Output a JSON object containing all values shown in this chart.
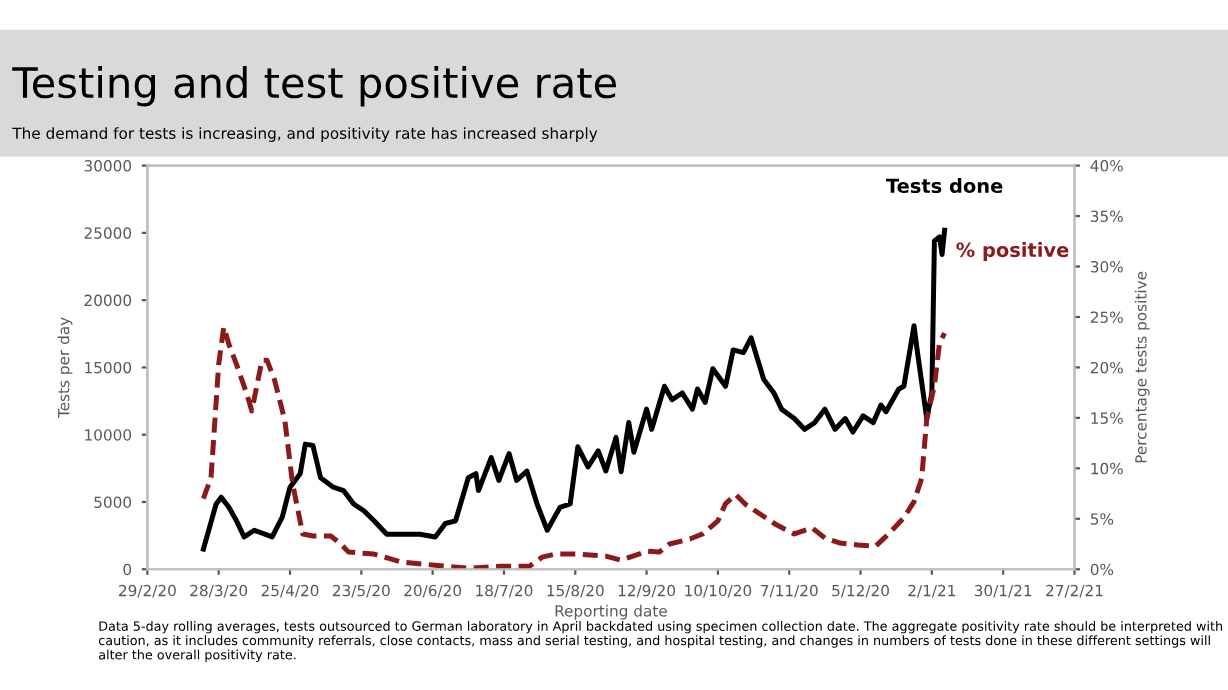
{
  "chart_data": {
    "type": "line",
    "title": "Testing and test positive rate",
    "subtitle": "The demand for tests is increasing, and positivity rate has increased sharply",
    "xlabel": "Reporting date",
    "ylabel": "Tests per day",
    "y2label": "Percentage tests positive",
    "xlim": [
      "2020-02-29",
      "2021-02-27"
    ],
    "xticks": [
      {
        "value": "2020-02-29",
        "label": "29/2/20"
      },
      {
        "value": "2020-03-28",
        "label": "28/3/20"
      },
      {
        "value": "2020-04-25",
        "label": "25/4/20"
      },
      {
        "value": "2020-05-23",
        "label": "23/5/20"
      },
      {
        "value": "2020-06-20",
        "label": "20/6/20"
      },
      {
        "value": "2020-07-18",
        "label": "18/7/20"
      },
      {
        "value": "2020-08-15",
        "label": "15/8/20"
      },
      {
        "value": "2020-09-12",
        "label": "12/9/20"
      },
      {
        "value": "2020-10-10",
        "label": "10/10/20"
      },
      {
        "value": "2020-11-07",
        "label": "7/11/20"
      },
      {
        "value": "2020-12-05",
        "label": "5/12/20"
      },
      {
        "value": "2021-01-02",
        "label": "2/1/21"
      },
      {
        "value": "2021-01-30",
        "label": "30/1/21"
      },
      {
        "value": "2021-02-27",
        "label": "27/2/21"
      }
    ],
    "ylim": [
      0,
      30000
    ],
    "yticks": [
      0,
      5000,
      10000,
      15000,
      20000,
      25000,
      30000
    ],
    "y2lim": [
      0,
      40
    ],
    "y2ticks": [
      {
        "value": 0,
        "label": "0%"
      },
      {
        "value": 5,
        "label": "5%"
      },
      {
        "value": 10,
        "label": "10%"
      },
      {
        "value": 15,
        "label": "15%"
      },
      {
        "value": 20,
        "label": "20%"
      },
      {
        "value": 25,
        "label": "25%"
      },
      {
        "value": 30,
        "label": "30%"
      },
      {
        "value": 35,
        "label": "35%"
      },
      {
        "value": 40,
        "label": "40%"
      }
    ],
    "grid": false,
    "legend": false,
    "series": [
      {
        "name": "Tests done",
        "color": "#000000",
        "line_style": "solid",
        "x": [
          "2020-03-22",
          "2020-03-27",
          "2020-03-29",
          "2020-04-01",
          "2020-04-04",
          "2020-04-07",
          "2020-04-11",
          "2020-04-18",
          "2020-04-22",
          "2020-04-25",
          "2020-04-29",
          "2020-05-01",
          "2020-05-04",
          "2020-05-07",
          "2020-05-12",
          "2020-05-16",
          "2020-05-20",
          "2020-05-24",
          "2020-05-28",
          "2020-06-02",
          "2020-06-08",
          "2020-06-15",
          "2020-06-21",
          "2020-06-25",
          "2020-06-29",
          "2020-07-04",
          "2020-07-07",
          "2020-07-08",
          "2020-07-13",
          "2020-07-16",
          "2020-07-20",
          "2020-07-23",
          "2020-07-27",
          "2020-07-31",
          "2020-08-04",
          "2020-08-09",
          "2020-08-13",
          "2020-08-16",
          "2020-08-20",
          "2020-08-24",
          "2020-08-27",
          "2020-08-31",
          "2020-09-02",
          "2020-09-05",
          "2020-09-07",
          "2020-09-12",
          "2020-09-14",
          "2020-09-19",
          "2020-09-22",
          "2020-09-26",
          "2020-09-30",
          "2020-10-02",
          "2020-10-05",
          "2020-10-08",
          "2020-10-13",
          "2020-10-16",
          "2020-10-20",
          "2020-10-23",
          "2020-10-28",
          "2020-11-01",
          "2020-11-04",
          "2020-11-09",
          "2020-11-13",
          "2020-11-17",
          "2020-11-21",
          "2020-11-25",
          "2020-11-29",
          "2020-12-02",
          "2020-12-06",
          "2020-12-10",
          "2020-12-13",
          "2020-12-15",
          "2020-12-20",
          "2020-12-22",
          "2020-12-26",
          "2020-12-27",
          "2020-12-31",
          "2021-01-02",
          "2021-01-03",
          "2021-01-05",
          "2021-01-06",
          "2021-01-07"
        ],
        "values": [
          1500,
          4850,
          5350,
          4600,
          3600,
          2400,
          2900,
          2400,
          3900,
          6100,
          7100,
          9300,
          9200,
          6800,
          6100,
          5850,
          4850,
          4350,
          3600,
          2600,
          2600,
          2600,
          2400,
          3400,
          3600,
          6800,
          7100,
          5850,
          8300,
          6600,
          8600,
          6600,
          7300,
          4850,
          2900,
          4600,
          4850,
          9100,
          7600,
          8800,
          7300,
          9800,
          7250,
          10900,
          8700,
          11900,
          10400,
          13600,
          12600,
          13100,
          11900,
          13400,
          12400,
          14900,
          13600,
          16300,
          16100,
          17200,
          14100,
          13100,
          11900,
          11200,
          10400,
          10900,
          11900,
          10400,
          11200,
          10200,
          11400,
          10900,
          12200,
          11700,
          13400,
          13600,
          18100,
          16600,
          11200,
          13100,
          24400,
          24700,
          23400,
          25200
        ]
      },
      {
        "name": "% positive",
        "color": "#8b1a1a",
        "line_style": "dashed",
        "axis": "y2",
        "x": [
          "2020-03-22",
          "2020-03-25",
          "2020-03-28",
          "2020-03-30",
          "2020-04-01",
          "2020-04-04",
          "2020-04-08",
          "2020-04-10",
          "2020-04-14",
          "2020-04-16",
          "2020-04-19",
          "2020-04-23",
          "2020-04-26",
          "2020-04-30",
          "2020-05-04",
          "2020-05-11",
          "2020-05-15",
          "2020-05-18",
          "2020-05-28",
          "2020-06-08",
          "2020-06-21",
          "2020-07-04",
          "2020-07-17",
          "2020-07-28",
          "2020-08-02",
          "2020-08-07",
          "2020-08-16",
          "2020-08-27",
          "2020-09-02",
          "2020-09-09",
          "2020-09-12",
          "2020-09-17",
          "2020-09-21",
          "2020-09-29",
          "2020-10-04",
          "2020-10-10",
          "2020-10-13",
          "2020-10-17",
          "2020-10-21",
          "2020-10-27",
          "2020-11-02",
          "2020-11-09",
          "2020-11-16",
          "2020-11-21",
          "2020-11-27",
          "2020-12-04",
          "2020-12-11",
          "2020-12-16",
          "2020-12-22",
          "2020-12-26",
          "2020-12-29",
          "2020-12-31",
          "2021-01-03",
          "2021-01-05",
          "2021-01-07"
        ],
        "values": [
          7.0,
          9.1,
          20.3,
          24.0,
          22.3,
          20.3,
          17.4,
          15.7,
          20.7,
          20.7,
          18.7,
          14.7,
          8.5,
          3.5,
          3.3,
          3.3,
          2.5,
          1.7,
          1.5,
          0.7,
          0.4,
          0.1,
          0.3,
          0.3,
          1.2,
          1.5,
          1.5,
          1.3,
          0.9,
          1.5,
          1.8,
          1.7,
          2.5,
          3.0,
          3.5,
          4.8,
          6.5,
          7.4,
          6.4,
          5.4,
          4.4,
          3.5,
          4.1,
          3.1,
          2.6,
          2.4,
          2.3,
          3.5,
          5.1,
          6.7,
          9.0,
          14.9,
          18.2,
          22.4,
          23.4
        ]
      }
    ],
    "annotations": [
      "Data 5-day rolling averages, tests outsourced to German laboratory in April backdated using specimen collection date. The aggregate positivity rate should be interpreted with caution, as it includes community referrals, close contacts, mass and serial testing, and hospital testing, and changes in numbers of tests done in these different settings will alter the overall positivity rate."
    ]
  }
}
